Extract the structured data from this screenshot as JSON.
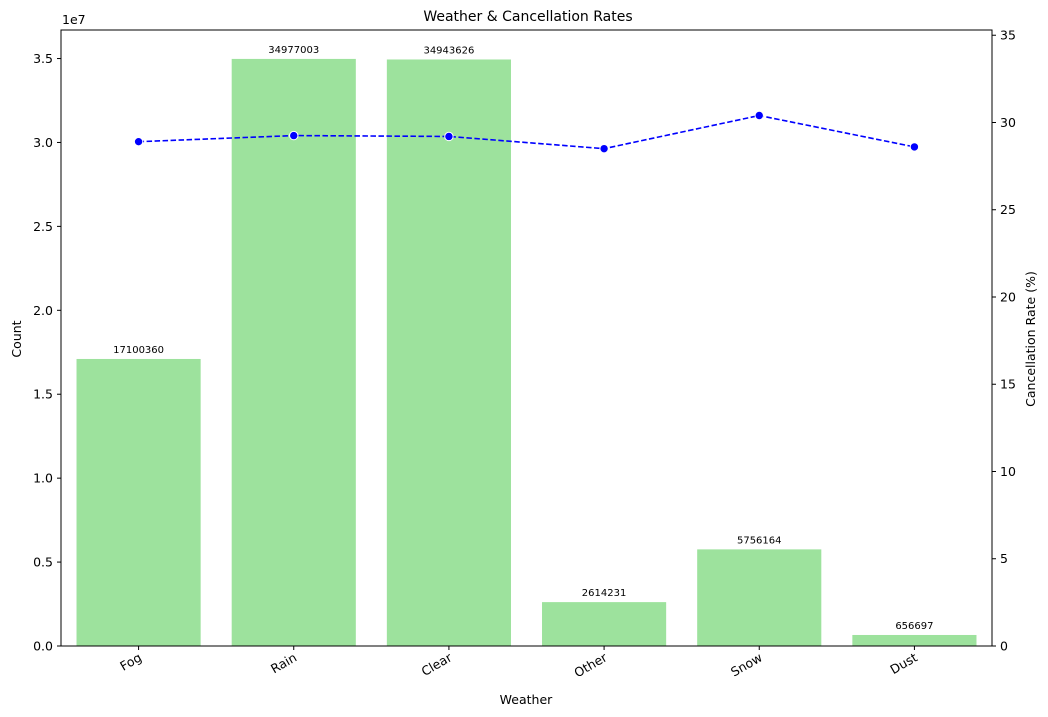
{
  "chart_data": {
    "type": "bar",
    "title": "Weather & Cancellation Rates",
    "xlabel": "Weather",
    "ylabel": "Count",
    "y2label": "Cancellation Rate (%)",
    "y_offset_text": "1e7",
    "categories": [
      "Fog",
      "Rain",
      "Clear",
      "Other",
      "Snow",
      "Dust"
    ],
    "series": [
      {
        "type": "bar",
        "axis": "left",
        "color": "#9de29d",
        "values": [
          17100360,
          34977003,
          34943626,
          2614231,
          5756164,
          656697
        ],
        "labels": [
          "17100360",
          "34977003",
          "34943626",
          "2614231",
          "5756164",
          "656697"
        ]
      },
      {
        "type": "line",
        "axis": "right",
        "color": "#0000ff",
        "linestyle": "dashed",
        "marker": "circle",
        "values": [
          28.9,
          29.25,
          29.2,
          28.5,
          30.4,
          28.6
        ]
      }
    ],
    "ylim": [
      0,
      36700000
    ],
    "y2lim": [
      0,
      35.3
    ],
    "yticks": [
      0,
      5000000,
      10000000,
      15000000,
      20000000,
      25000000,
      30000000,
      35000000
    ],
    "ytick_labels": [
      "0.0",
      "0.5",
      "1.0",
      "1.5",
      "2.0",
      "2.5",
      "3.0",
      "3.5"
    ],
    "y2ticks": [
      0,
      5,
      10,
      15,
      20,
      25,
      30,
      35
    ],
    "y2tick_labels": [
      "0",
      "5",
      "10",
      "15",
      "20",
      "25",
      "30",
      "35"
    ],
    "grid": false,
    "legend": "none"
  }
}
